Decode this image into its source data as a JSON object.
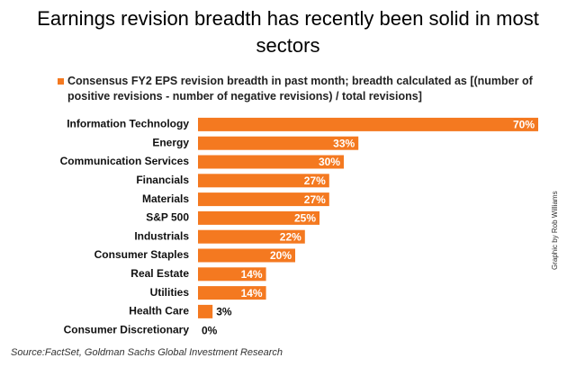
{
  "chart_data": {
    "type": "bar",
    "orientation": "horizontal",
    "title": "Earnings revision breadth has recently been solid in most sectors",
    "categories": [
      "Information Technology",
      "Energy",
      "Communication Services",
      "Financials",
      "Materials",
      "S&P 500",
      "Industrials",
      "Consumer Staples",
      "Real Estate",
      "Utilities",
      "Health Care",
      "Consumer Discretionary"
    ],
    "series": [
      {
        "name": "Consensus FY2 EPS revision breadth in past month; breadth calculated as [(number of positive revisions - number of negative revisions) / total revisions]",
        "color": "#f47920",
        "values": [
          70,
          33,
          30,
          27,
          27,
          25,
          22,
          20,
          14,
          14,
          3,
          0
        ],
        "value_labels": [
          "70%",
          "33%",
          "30%",
          "27%",
          "27%",
          "25%",
          "22%",
          "20%",
          "14%",
          "14%",
          "3%",
          "0%"
        ]
      }
    ],
    "source": "Source:FactSet, Goldman Sachs Global Investment Research",
    "credit": "Graphic by Rob Williams"
  }
}
